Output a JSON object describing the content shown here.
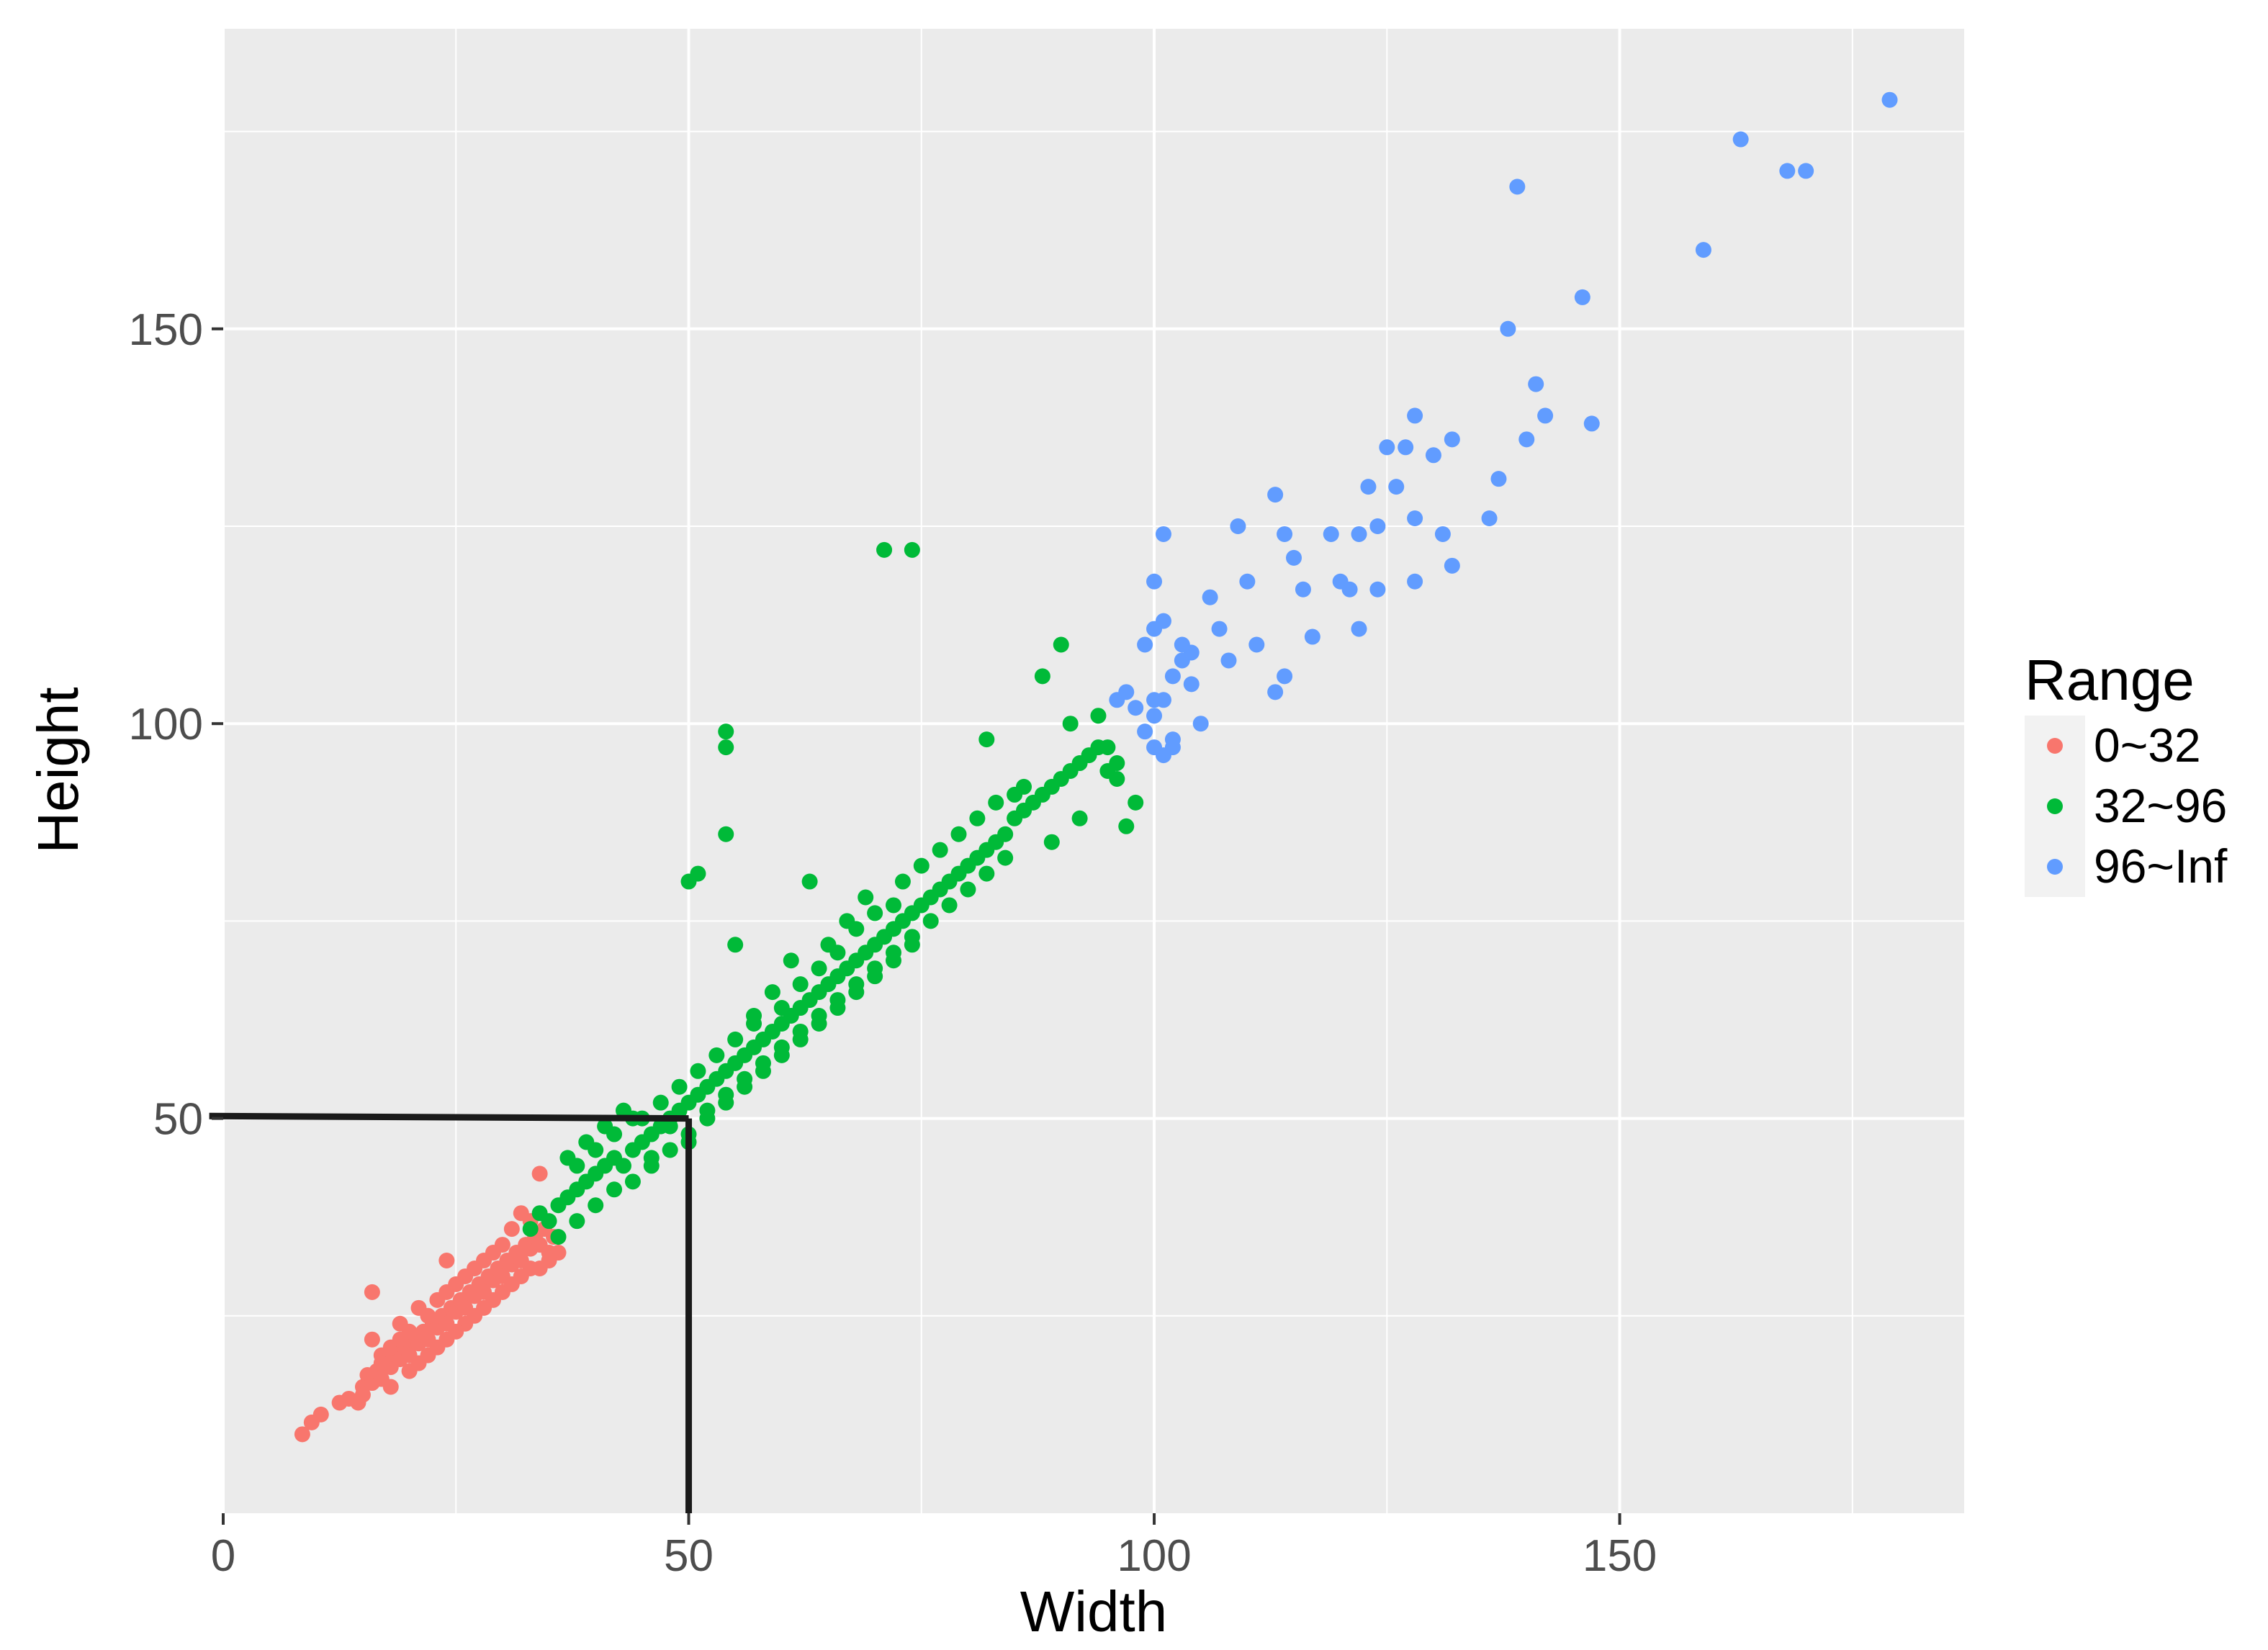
{
  "chart_data": {
    "type": "scatter",
    "xlabel": "Width",
    "ylabel": "Height",
    "xlim": [
      0,
      187
    ],
    "ylim": [
      0,
      188
    ],
    "x_ticks": [
      0,
      50,
      100,
      150
    ],
    "y_ticks": [
      50,
      100,
      150
    ],
    "grid": true,
    "legend": {
      "title": "Range",
      "placement": "right",
      "entries": [
        {
          "label": "0~32",
          "color": "#F8766D"
        },
        {
          "label": "32~96",
          "color": "#00BA38"
        },
        {
          "label": "96~Inf",
          "color": "#619CFF"
        }
      ]
    },
    "series": [
      {
        "name": "0~32",
        "color": "#F8766D",
        "points": [
          [
            8.5,
            10
          ],
          [
            9.5,
            11.5
          ],
          [
            10.5,
            12.5
          ],
          [
            12.5,
            14
          ],
          [
            13.5,
            14.5
          ],
          [
            14.5,
            14
          ],
          [
            15,
            16
          ],
          [
            15.5,
            17.5
          ],
          [
            16,
            16.5
          ],
          [
            16.5,
            18
          ],
          [
            17,
            17
          ],
          [
            17.5,
            19
          ],
          [
            18,
            18.5
          ],
          [
            18.5,
            20
          ],
          [
            19,
            19.5
          ],
          [
            19.5,
            21
          ],
          [
            20,
            20
          ],
          [
            20.5,
            22
          ],
          [
            21,
            21.5
          ],
          [
            21.5,
            23
          ],
          [
            22,
            22
          ],
          [
            22.5,
            24
          ],
          [
            23,
            23.5
          ],
          [
            23.5,
            25
          ],
          [
            24,
            24
          ],
          [
            24.5,
            26
          ],
          [
            25,
            25.5
          ],
          [
            25.5,
            27
          ],
          [
            26,
            26
          ],
          [
            26.5,
            28
          ],
          [
            27,
            27.5
          ],
          [
            27.5,
            29
          ],
          [
            28,
            28
          ],
          [
            28.5,
            30
          ],
          [
            29,
            29.5
          ],
          [
            29.5,
            31
          ],
          [
            30,
            30
          ],
          [
            30.5,
            32
          ],
          [
            31,
            31.5
          ],
          [
            31.5,
            33
          ],
          [
            32,
            32
          ],
          [
            32.5,
            34
          ],
          [
            33,
            33.5
          ],
          [
            33.5,
            35
          ],
          [
            34,
            34
          ],
          [
            35,
            33
          ],
          [
            34.5,
            36
          ],
          [
            35.5,
            35
          ],
          [
            22,
            25
          ],
          [
            24,
            28
          ],
          [
            26,
            30
          ],
          [
            28,
            32
          ],
          [
            30,
            34
          ],
          [
            20,
            23
          ],
          [
            18,
            21
          ],
          [
            21,
            26
          ],
          [
            23,
            27
          ],
          [
            25,
            29
          ],
          [
            27,
            31
          ],
          [
            29,
            33
          ],
          [
            19,
            22
          ],
          [
            17,
            20
          ],
          [
            16,
            22
          ],
          [
            16,
            28
          ],
          [
            24,
            32
          ],
          [
            32,
            38
          ],
          [
            34,
            43
          ],
          [
            31,
            36
          ],
          [
            33,
            37
          ],
          [
            28,
            26
          ],
          [
            26,
            24
          ],
          [
            24,
            22
          ],
          [
            22,
            20
          ],
          [
            20,
            18
          ],
          [
            18,
            16
          ],
          [
            30,
            28
          ],
          [
            32,
            30
          ],
          [
            34,
            31
          ],
          [
            36,
            33
          ],
          [
            15,
            15
          ],
          [
            21,
            19
          ],
          [
            23,
            21
          ],
          [
            25,
            23
          ],
          [
            27,
            25
          ],
          [
            29,
            27
          ],
          [
            31,
            29
          ],
          [
            33,
            31
          ],
          [
            35,
            32
          ],
          [
            19,
            24
          ],
          [
            17,
            19
          ]
        ]
      },
      {
        "name": "32~96",
        "color": "#00BA38",
        "points": [
          [
            33,
            36
          ],
          [
            34,
            38
          ],
          [
            35,
            37
          ],
          [
            36,
            39
          ],
          [
            37,
            40
          ],
          [
            38,
            41
          ],
          [
            39,
            42
          ],
          [
            40,
            43
          ],
          [
            41,
            44
          ],
          [
            42,
            45
          ],
          [
            43,
            44
          ],
          [
            44,
            46
          ],
          [
            45,
            47
          ],
          [
            46,
            48
          ],
          [
            47,
            49
          ],
          [
            48,
            50
          ],
          [
            49,
            51
          ],
          [
            50,
            52
          ],
          [
            51,
            53
          ],
          [
            52,
            54
          ],
          [
            53,
            55
          ],
          [
            54,
            56
          ],
          [
            55,
            57
          ],
          [
            56,
            58
          ],
          [
            57,
            59
          ],
          [
            58,
            60
          ],
          [
            59,
            61
          ],
          [
            60,
            62
          ],
          [
            61,
            63
          ],
          [
            62,
            64
          ],
          [
            63,
            65
          ],
          [
            64,
            66
          ],
          [
            65,
            67
          ],
          [
            66,
            68
          ],
          [
            67,
            69
          ],
          [
            68,
            70
          ],
          [
            69,
            71
          ],
          [
            70,
            72
          ],
          [
            71,
            73
          ],
          [
            72,
            74
          ],
          [
            73,
            75
          ],
          [
            74,
            76
          ],
          [
            75,
            77
          ],
          [
            76,
            78
          ],
          [
            77,
            79
          ],
          [
            78,
            80
          ],
          [
            79,
            81
          ],
          [
            80,
            82
          ],
          [
            81,
            83
          ],
          [
            82,
            84
          ],
          [
            83,
            85
          ],
          [
            84,
            86
          ],
          [
            85,
            88
          ],
          [
            86,
            89
          ],
          [
            87,
            90
          ],
          [
            88,
            91
          ],
          [
            89,
            92
          ],
          [
            90,
            93
          ],
          [
            91,
            94
          ],
          [
            92,
            95
          ],
          [
            93,
            96
          ],
          [
            94,
            97
          ],
          [
            95,
            94
          ],
          [
            96,
            93
          ],
          [
            97,
            87
          ],
          [
            98,
            90
          ],
          [
            38,
            44
          ],
          [
            40,
            46
          ],
          [
            42,
            48
          ],
          [
            44,
            50
          ],
          [
            46,
            45
          ],
          [
            48,
            49
          ],
          [
            50,
            47
          ],
          [
            52,
            51
          ],
          [
            54,
            53
          ],
          [
            56,
            55
          ],
          [
            58,
            57
          ],
          [
            60,
            59
          ],
          [
            62,
            61
          ],
          [
            64,
            63
          ],
          [
            66,
            65
          ],
          [
            68,
            67
          ],
          [
            70,
            69
          ],
          [
            72,
            71
          ],
          [
            74,
            73
          ],
          [
            76,
            75
          ],
          [
            78,
            77
          ],
          [
            80,
            79
          ],
          [
            82,
            81
          ],
          [
            84,
            83
          ],
          [
            36,
            35
          ],
          [
            38,
            37
          ],
          [
            40,
            39
          ],
          [
            42,
            41
          ],
          [
            44,
            42
          ],
          [
            46,
            44
          ],
          [
            48,
            46
          ],
          [
            50,
            48
          ],
          [
            52,
            50
          ],
          [
            54,
            52
          ],
          [
            56,
            54
          ],
          [
            58,
            56
          ],
          [
            60,
            58
          ],
          [
            62,
            60
          ],
          [
            64,
            62
          ],
          [
            66,
            64
          ],
          [
            68,
            66
          ],
          [
            70,
            68
          ],
          [
            72,
            70
          ],
          [
            74,
            72
          ],
          [
            50,
            80
          ],
          [
            51,
            81
          ],
          [
            54,
            97
          ],
          [
            54,
            99
          ],
          [
            54,
            86
          ],
          [
            55,
            72
          ],
          [
            63,
            80
          ],
          [
            71,
            122
          ],
          [
            74,
            122
          ],
          [
            90,
            110
          ],
          [
            88,
            106
          ],
          [
            91,
            100
          ],
          [
            94,
            101
          ],
          [
            82,
            98
          ],
          [
            86,
            92
          ],
          [
            96,
            95
          ],
          [
            92,
            88
          ],
          [
            89,
            85
          ],
          [
            95,
            97
          ],
          [
            57,
            62
          ],
          [
            59,
            66
          ],
          [
            61,
            70
          ],
          [
            65,
            72
          ],
          [
            67,
            75
          ],
          [
            69,
            78
          ],
          [
            73,
            80
          ],
          [
            75,
            82
          ],
          [
            77,
            84
          ],
          [
            79,
            86
          ],
          [
            81,
            88
          ],
          [
            83,
            90
          ],
          [
            85,
            91
          ],
          [
            60,
            64
          ],
          [
            62,
            67
          ],
          [
            64,
            69
          ],
          [
            66,
            71
          ],
          [
            68,
            74
          ],
          [
            70,
            76
          ],
          [
            72,
            77
          ],
          [
            45,
            50
          ],
          [
            47,
            52
          ],
          [
            49,
            54
          ],
          [
            51,
            56
          ],
          [
            53,
            58
          ],
          [
            55,
            60
          ],
          [
            57,
            63
          ],
          [
            41,
            49
          ],
          [
            43,
            51
          ],
          [
            39,
            47
          ],
          [
            37,
            45
          ]
        ]
      },
      {
        "name": "96~Inf",
        "color": "#619CFF",
        "points": [
          [
            96,
            103
          ],
          [
            97,
            104
          ],
          [
            98,
            102
          ],
          [
            99,
            99
          ],
          [
            100,
            97
          ],
          [
            101,
            96
          ],
          [
            102,
            97
          ],
          [
            100,
            101
          ],
          [
            101,
            103
          ],
          [
            102,
            106
          ],
          [
            103,
            108
          ],
          [
            104,
            109
          ],
          [
            100,
            112
          ],
          [
            101,
            113
          ],
          [
            100,
            118
          ],
          [
            101,
            124
          ],
          [
            103,
            110
          ],
          [
            104,
            105
          ],
          [
            105,
            100
          ],
          [
            106,
            116
          ],
          [
            107,
            112
          ],
          [
            108,
            108
          ],
          [
            109,
            125
          ],
          [
            110,
            118
          ],
          [
            111,
            110
          ],
          [
            113,
            104
          ],
          [
            114,
            106
          ],
          [
            113,
            129
          ],
          [
            114,
            124
          ],
          [
            115,
            121
          ],
          [
            116,
            117
          ],
          [
            117,
            111
          ],
          [
            119,
            124
          ],
          [
            120,
            118
          ],
          [
            121,
            117
          ],
          [
            122,
            124
          ],
          [
            122,
            112
          ],
          [
            123,
            130
          ],
          [
            124,
            125
          ],
          [
            124,
            117
          ],
          [
            125,
            135
          ],
          [
            126,
            130
          ],
          [
            127,
            135
          ],
          [
            128,
            139
          ],
          [
            128,
            126
          ],
          [
            128,
            118
          ],
          [
            130,
            134
          ],
          [
            131,
            124
          ],
          [
            132,
            136
          ],
          [
            132,
            120
          ],
          [
            136,
            126
          ],
          [
            137,
            131
          ],
          [
            138,
            150
          ],
          [
            139,
            168
          ],
          [
            140,
            136
          ],
          [
            141,
            143
          ],
          [
            142,
            139
          ],
          [
            146,
            154
          ],
          [
            147,
            138
          ],
          [
            159,
            160
          ],
          [
            163,
            174
          ],
          [
            168,
            170
          ],
          [
            170,
            170
          ],
          [
            179,
            179
          ],
          [
            99,
            110
          ],
          [
            102,
            98
          ],
          [
            100,
            103
          ]
        ]
      }
    ],
    "annotation_lines": [
      {
        "points": [
          [
            -1.5,
            50.3
          ],
          [
            50,
            50
          ]
        ]
      },
      {
        "points": [
          [
            50,
            50
          ],
          [
            50,
            0
          ]
        ]
      }
    ]
  }
}
